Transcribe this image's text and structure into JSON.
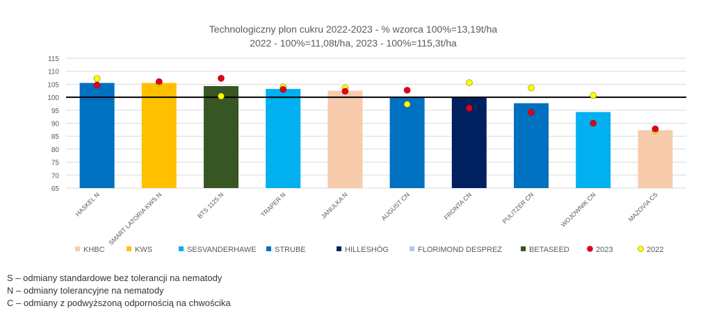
{
  "chart_data": {
    "type": "bar",
    "title_line1": "Technologiczny plon cukru 2022-2023 - % wzorca 100%=13,19t/ha",
    "title_line2": "2022 - 100%=11,08t/ha, 2023 - 100%=115,3t/ha",
    "ylim": [
      65,
      115
    ],
    "yticks": [
      65,
      70,
      75,
      80,
      85,
      90,
      95,
      100,
      105,
      110,
      115
    ],
    "reference_line": 100,
    "grid": true,
    "legend_position": "bottom",
    "categories": [
      "HASKEL N",
      "SMART LATORIA KWS N",
      "BTS 1125 N",
      "TRAPER N",
      "JANULKA N",
      "AUGUST CN",
      "FRONTA CN",
      "PULITZER CN",
      "WOJOWNIK CN",
      "MAZOVIA CS"
    ],
    "bar_values": [
      105.5,
      105.5,
      104.3,
      103.2,
      102.5,
      100.2,
      100.0,
      97.7,
      94.3,
      87.3
    ],
    "bar_groups": [
      "STRUBE",
      "KWS",
      "BETASEED",
      "SESVANDERHAWE",
      "KHBC",
      "STRUBE",
      "HILLESHÖG",
      "STRUBE",
      "SESVANDERHAWE",
      "KHBC"
    ],
    "series": [
      {
        "name": "2023",
        "marker": "dot",
        "values": [
          104.7,
          106.0,
          107.3,
          103.0,
          102.3,
          102.7,
          95.8,
          94.2,
          90.0,
          87.8
        ]
      },
      {
        "name": "2022",
        "marker": "dot",
        "values": [
          107.2,
          105.4,
          100.4,
          104.0,
          103.6,
          97.3,
          105.6,
          103.6,
          100.7,
          87.2
        ]
      }
    ],
    "legend": [
      {
        "label": "KHBC",
        "kind": "square",
        "color": "#F8CBAD"
      },
      {
        "label": "KWS",
        "kind": "square",
        "color": "#FFC000"
      },
      {
        "label": "SESVANDERHAWE",
        "kind": "square",
        "color": "#00B0F0"
      },
      {
        "label": "STRUBE",
        "kind": "square",
        "color": "#0070C0"
      },
      {
        "label": "HILLESHÖG",
        "kind": "square",
        "color": "#002060"
      },
      {
        "label": "FLORIMOND DESPREZ",
        "kind": "square",
        "color": "#B4C7E7"
      },
      {
        "label": "BETASEED",
        "kind": "square",
        "color": "#375623"
      },
      {
        "label": "2023",
        "kind": "dot",
        "color": "#E3001B"
      },
      {
        "label": "2022",
        "kind": "dot",
        "color": "#FFFF00"
      }
    ],
    "group_colors": {
      "KHBC": "#F8CBAD",
      "KWS": "#FFC000",
      "SESVANDERHAWE": "#00B0F0",
      "STRUBE": "#0070C0",
      "HILLESHÖG": "#002060",
      "FLORIMOND DESPREZ": "#B4C7E7",
      "BETASEED": "#375623"
    },
    "dot_colors": {
      "2023": "#E3001B",
      "2022": "#FFFF00"
    }
  },
  "notes": [
    "S – odmiany standardowe bez tolerancji na nematody",
    "N – odmiany tolerancyjne na nematody",
    "C – odmiany z podwyższoną odpornością na chwościka"
  ]
}
